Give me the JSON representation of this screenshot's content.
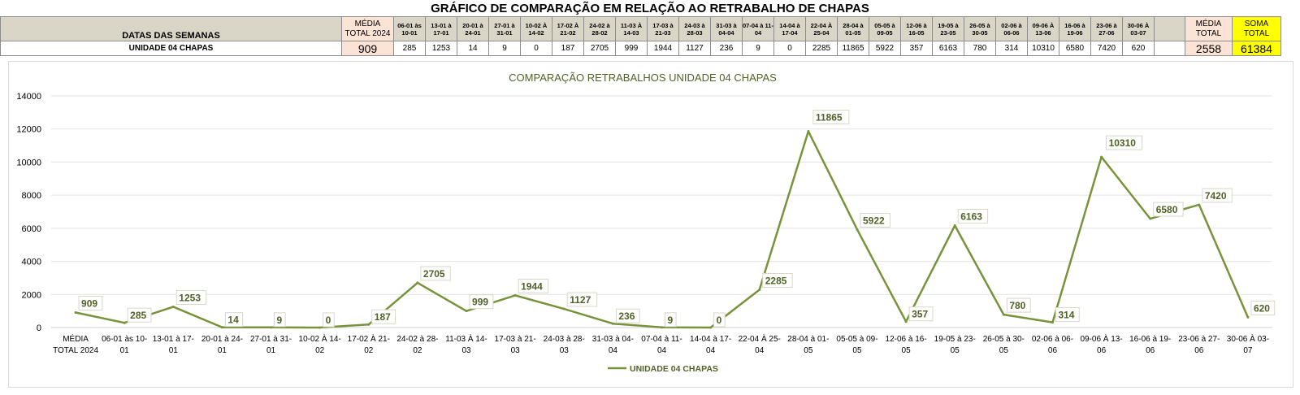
{
  "sheet": {
    "title": "GRÁFICO DE COMPARAÇÃO EM RELAÇÃO AO RETRABALHO DE CHAPAS",
    "header_label": "DATAS DAS SEMANAS",
    "row_label": "UNIDADE 04 CHAPAS",
    "media_header": "MÉDIA TOTAL 2024",
    "media_value": "909",
    "weeks": [
      "06-01 às 10-01",
      "13-01 à 17-01",
      "20-01 à 24-01",
      "27-01 à 31-01",
      "10-02 À 14-02",
      "17-02 À 21-02",
      "24-02 à 28-02",
      "11-03 À 14-03",
      "17-03 à 21-03",
      "24-03 à 28-03",
      "31-03 à 04-04",
      "07-04 à 11-04",
      "14-04 à 17-04",
      "22-04 À 25-04",
      "28-04 à 01-05",
      "05-05 à 09-05",
      "12-06 à 16-05",
      "19-05 à 23-05",
      "26-05 à 30-05",
      "02-06 à 06-06",
      "09-06 À 13-06",
      "16-06 à 19-06",
      "23-06 à 27-06",
      "30-06 À 03-07"
    ],
    "week_values": [
      "285",
      "1253",
      "14",
      "9",
      "0",
      "187",
      "2705",
      "999",
      "1944",
      "1127",
      "236",
      "9",
      "0",
      "2285",
      "11865",
      "5922",
      "357",
      "6163",
      "780",
      "314",
      "10310",
      "6580",
      "7420",
      "620"
    ],
    "media_total_header": "MÉDIA TOTAL",
    "media_total_value": "2558",
    "soma_total_header": "SOMA TOTAL",
    "soma_total_value": "61384"
  },
  "chart_data": {
    "type": "line",
    "title": "COMPARAÇÃO RETRABALHOS UNIDADE 04 CHAPAS",
    "categories": [
      "MÉDIA TOTAL 2024",
      "06-01 às 10-01",
      "13-01 à 17-01",
      "20-01 à 24-01",
      "27-01 à 31-01",
      "10-02 À 14-02",
      "17-02 À 21-02",
      "24-02 à 28-02",
      "11-03 À 14-03",
      "17-03 à 21-03",
      "24-03 à 28-03",
      "31-03 à 04-04",
      "07-04 à 11-04",
      "14-04 à 17-04",
      "22-04 À 25-04",
      "28-04 à 01-05",
      "05-05 à 09-05",
      "12-06 à 16-05",
      "19-05 à 23-05",
      "26-05 à 30-05",
      "02-06 à 06-06",
      "09-06 À 13-06",
      "16-06 à 19-06",
      "23-06 à 27-06",
      "30-06 À 03-07"
    ],
    "category_lines": [
      [
        "MÉDIA",
        "TOTAL 2024"
      ],
      [
        "06-01 às 10-",
        "01"
      ],
      [
        "13-01 à 17-",
        "01"
      ],
      [
        "20-01 à 24-",
        "01"
      ],
      [
        "27-01 à 31-",
        "01"
      ],
      [
        "10-02 À 14-",
        "02"
      ],
      [
        "17-02 À 21-",
        "02"
      ],
      [
        "24-02 à 28-",
        "02"
      ],
      [
        "11-03 À 14-",
        "03"
      ],
      [
        "17-03 à 21-",
        "03"
      ],
      [
        "24-03 à 28-",
        "03"
      ],
      [
        "31-03 à 04-",
        "04"
      ],
      [
        "07-04 à 11-",
        "04"
      ],
      [
        "14-04 à 17-",
        "04"
      ],
      [
        "22-04 À 25-",
        "04"
      ],
      [
        "28-04 à 01-",
        "05"
      ],
      [
        "05-05 à 09-",
        "05"
      ],
      [
        "12-06 à 16-",
        "05"
      ],
      [
        "19-05 à 23-",
        "05"
      ],
      [
        "26-05 à 30-",
        "05"
      ],
      [
        "02-06 à 06-",
        "06"
      ],
      [
        "09-06 À 13-",
        "06"
      ],
      [
        "16-06 à 19-",
        "06"
      ],
      [
        "23-06 à 27-",
        "06"
      ],
      [
        "30-06 À 03-",
        "07"
      ]
    ],
    "series": [
      {
        "name": "UNIDADE 04 CHAPAS",
        "values": [
          909,
          285,
          1253,
          14,
          9,
          0,
          187,
          2705,
          999,
          1944,
          1127,
          236,
          9,
          0,
          2285,
          11865,
          5922,
          357,
          6163,
          780,
          314,
          10310,
          6580,
          7420,
          620
        ],
        "color": "#77933c"
      }
    ],
    "label_color": "#4f6228",
    "ylim": [
      0,
      14000
    ],
    "yticks": [
      0,
      2000,
      4000,
      6000,
      8000,
      10000,
      12000,
      14000
    ],
    "grid": true,
    "legend": "bottom"
  }
}
